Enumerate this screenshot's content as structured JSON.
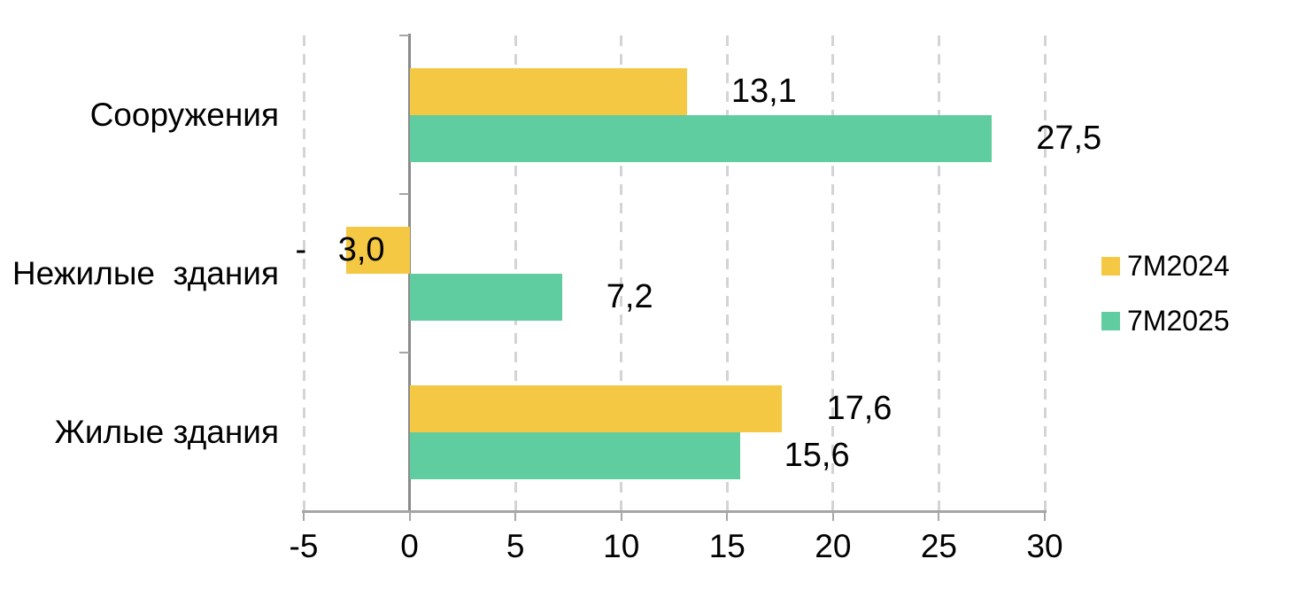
{
  "chart_data": {
    "type": "bar",
    "orientation": "horizontal",
    "title": "",
    "categories": [
      "Сооружения",
      "Нежилые  здания",
      "Жилые здания"
    ],
    "series": [
      {
        "name": "7M2024",
        "color": "#F4C843",
        "values": [
          13.1,
          -3.0,
          17.6
        ],
        "labels": [
          "13,1",
          "- 3,0",
          "17,6"
        ]
      },
      {
        "name": "7M2025",
        "color": "#60CDA1",
        "values": [
          27.5,
          7.2,
          15.6
        ],
        "labels": [
          "27,5",
          "7,2",
          "15,6"
        ]
      }
    ],
    "xlim": [
      -5,
      30
    ],
    "xticks": [
      -5,
      0,
      5,
      10,
      15,
      20,
      25,
      30
    ],
    "xtick_labels": [
      "-5",
      "0",
      "5",
      "10",
      "15",
      "20",
      "25",
      "30"
    ],
    "grid": "vertical-dashed",
    "legend": {
      "position": "right",
      "entries": [
        "7M2024",
        "7M2025"
      ]
    },
    "decimal_separator": ","
  },
  "colors": {
    "series_7m2024": "#F4C843",
    "series_7m2025": "#60CDA1",
    "axis_line": "#A6A6A6",
    "zero_line": "#8A8A8A",
    "gridline": "#D4D4D4",
    "text": "#000000",
    "background": "#FFFFFF"
  }
}
